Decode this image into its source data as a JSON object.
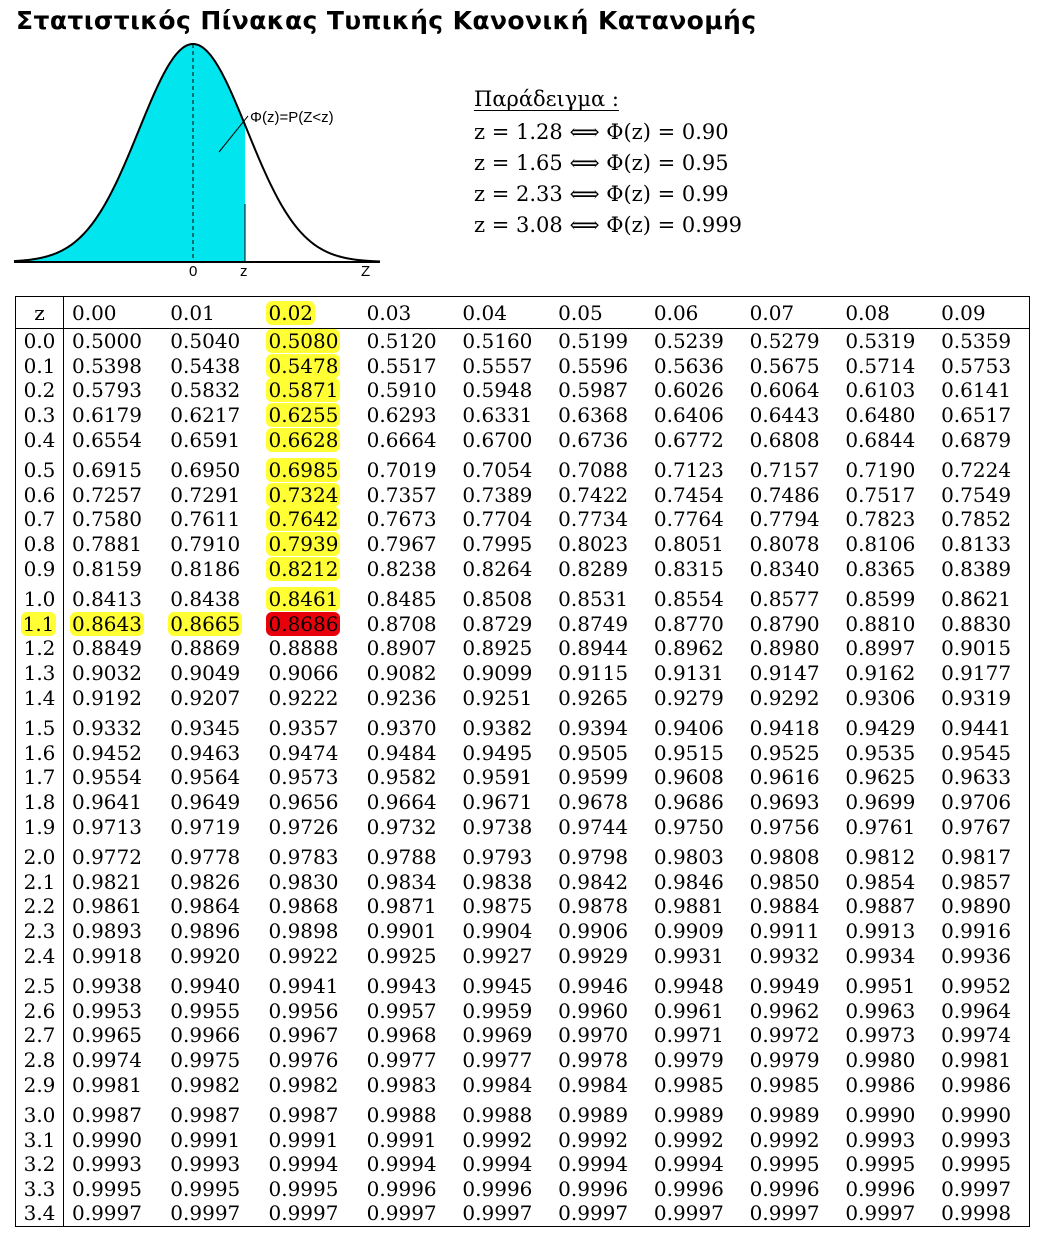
{
  "title": "Στατιστικός Πίνακας Τυπικής Κανονική Κατανομής",
  "figure": {
    "formula_label": "Φ(z)=P(Z<z)",
    "zero_label": "0",
    "z_label": "z",
    "axis_label": "Z",
    "fill_color": "#00e5ee"
  },
  "example": {
    "title": "Παράδειγμα :",
    "lines": [
      "z = 1.28 ⟺ Φ(z) = 0.90",
      "z = 1.65 ⟺ Φ(z) = 0.95",
      "z = 2.33 ⟺ Φ(z) = 0.99",
      "z = 3.08 ⟺ Φ(z) = 0.999"
    ]
  },
  "table": {
    "corner": "z",
    "columns": [
      "0.00",
      "0.01",
      "0.02",
      "0.03",
      "0.04",
      "0.05",
      "0.06",
      "0.07",
      "0.08",
      "0.09"
    ],
    "highlight_color": "#ffff33",
    "result_color": "#e8000b",
    "highlights": {
      "header_col": 2,
      "lookup_row": 11,
      "col_upto_row": 10,
      "row_upto_col": 1
    },
    "rows": [
      {
        "z": "0.0",
        "v": [
          "0.5000",
          "0.5040",
          "0.5080",
          "0.5120",
          "0.5160",
          "0.5199",
          "0.5239",
          "0.5279",
          "0.5319",
          "0.5359"
        ]
      },
      {
        "z": "0.1",
        "v": [
          "0.5398",
          "0.5438",
          "0.5478",
          "0.5517",
          "0.5557",
          "0.5596",
          "0.5636",
          "0.5675",
          "0.5714",
          "0.5753"
        ]
      },
      {
        "z": "0.2",
        "v": [
          "0.5793",
          "0.5832",
          "0.5871",
          "0.5910",
          "0.5948",
          "0.5987",
          "0.6026",
          "0.6064",
          "0.6103",
          "0.6141"
        ]
      },
      {
        "z": "0.3",
        "v": [
          "0.6179",
          "0.6217",
          "0.6255",
          "0.6293",
          "0.6331",
          "0.6368",
          "0.6406",
          "0.6443",
          "0.6480",
          "0.6517"
        ]
      },
      {
        "z": "0.4",
        "v": [
          "0.6554",
          "0.6591",
          "0.6628",
          "0.6664",
          "0.6700",
          "0.6736",
          "0.6772",
          "0.6808",
          "0.6844",
          "0.6879"
        ]
      },
      {
        "z": "0.5",
        "v": [
          "0.6915",
          "0.6950",
          "0.6985",
          "0.7019",
          "0.7054",
          "0.7088",
          "0.7123",
          "0.7157",
          "0.7190",
          "0.7224"
        ]
      },
      {
        "z": "0.6",
        "v": [
          "0.7257",
          "0.7291",
          "0.7324",
          "0.7357",
          "0.7389",
          "0.7422",
          "0.7454",
          "0.7486",
          "0.7517",
          "0.7549"
        ]
      },
      {
        "z": "0.7",
        "v": [
          "0.7580",
          "0.7611",
          "0.7642",
          "0.7673",
          "0.7704",
          "0.7734",
          "0.7764",
          "0.7794",
          "0.7823",
          "0.7852"
        ]
      },
      {
        "z": "0.8",
        "v": [
          "0.7881",
          "0.7910",
          "0.7939",
          "0.7967",
          "0.7995",
          "0.8023",
          "0.8051",
          "0.8078",
          "0.8106",
          "0.8133"
        ]
      },
      {
        "z": "0.9",
        "v": [
          "0.8159",
          "0.8186",
          "0.8212",
          "0.8238",
          "0.8264",
          "0.8289",
          "0.8315",
          "0.8340",
          "0.8365",
          "0.8389"
        ]
      },
      {
        "z": "1.0",
        "v": [
          "0.8413",
          "0.8438",
          "0.8461",
          "0.8485",
          "0.8508",
          "0.8531",
          "0.8554",
          "0.8577",
          "0.8599",
          "0.8621"
        ]
      },
      {
        "z": "1.1",
        "v": [
          "0.8643",
          "0.8665",
          "0.8686",
          "0.8708",
          "0.8729",
          "0.8749",
          "0.8770",
          "0.8790",
          "0.8810",
          "0.8830"
        ]
      },
      {
        "z": "1.2",
        "v": [
          "0.8849",
          "0.8869",
          "0.8888",
          "0.8907",
          "0.8925",
          "0.8944",
          "0.8962",
          "0.8980",
          "0.8997",
          "0.9015"
        ]
      },
      {
        "z": "1.3",
        "v": [
          "0.9032",
          "0.9049",
          "0.9066",
          "0.9082",
          "0.9099",
          "0.9115",
          "0.9131",
          "0.9147",
          "0.9162",
          "0.9177"
        ]
      },
      {
        "z": "1.4",
        "v": [
          "0.9192",
          "0.9207",
          "0.9222",
          "0.9236",
          "0.9251",
          "0.9265",
          "0.9279",
          "0.9292",
          "0.9306",
          "0.9319"
        ]
      },
      {
        "z": "1.5",
        "v": [
          "0.9332",
          "0.9345",
          "0.9357",
          "0.9370",
          "0.9382",
          "0.9394",
          "0.9406",
          "0.9418",
          "0.9429",
          "0.9441"
        ]
      },
      {
        "z": "1.6",
        "v": [
          "0.9452",
          "0.9463",
          "0.9474",
          "0.9484",
          "0.9495",
          "0.9505",
          "0.9515",
          "0.9525",
          "0.9535",
          "0.9545"
        ]
      },
      {
        "z": "1.7",
        "v": [
          "0.9554",
          "0.9564",
          "0.9573",
          "0.9582",
          "0.9591",
          "0.9599",
          "0.9608",
          "0.9616",
          "0.9625",
          "0.9633"
        ]
      },
      {
        "z": "1.8",
        "v": [
          "0.9641",
          "0.9649",
          "0.9656",
          "0.9664",
          "0.9671",
          "0.9678",
          "0.9686",
          "0.9693",
          "0.9699",
          "0.9706"
        ]
      },
      {
        "z": "1.9",
        "v": [
          "0.9713",
          "0.9719",
          "0.9726",
          "0.9732",
          "0.9738",
          "0.9744",
          "0.9750",
          "0.9756",
          "0.9761",
          "0.9767"
        ]
      },
      {
        "z": "2.0",
        "v": [
          "0.9772",
          "0.9778",
          "0.9783",
          "0.9788",
          "0.9793",
          "0.9798",
          "0.9803",
          "0.9808",
          "0.9812",
          "0.9817"
        ]
      },
      {
        "z": "2.1",
        "v": [
          "0.9821",
          "0.9826",
          "0.9830",
          "0.9834",
          "0.9838",
          "0.9842",
          "0.9846",
          "0.9850",
          "0.9854",
          "0.9857"
        ]
      },
      {
        "z": "2.2",
        "v": [
          "0.9861",
          "0.9864",
          "0.9868",
          "0.9871",
          "0.9875",
          "0.9878",
          "0.9881",
          "0.9884",
          "0.9887",
          "0.9890"
        ]
      },
      {
        "z": "2.3",
        "v": [
          "0.9893",
          "0.9896",
          "0.9898",
          "0.9901",
          "0.9904",
          "0.9906",
          "0.9909",
          "0.9911",
          "0.9913",
          "0.9916"
        ]
      },
      {
        "z": "2.4",
        "v": [
          "0.9918",
          "0.9920",
          "0.9922",
          "0.9925",
          "0.9927",
          "0.9929",
          "0.9931",
          "0.9932",
          "0.9934",
          "0.9936"
        ]
      },
      {
        "z": "2.5",
        "v": [
          "0.9938",
          "0.9940",
          "0.9941",
          "0.9943",
          "0.9945",
          "0.9946",
          "0.9948",
          "0.9949",
          "0.9951",
          "0.9952"
        ]
      },
      {
        "z": "2.6",
        "v": [
          "0.9953",
          "0.9955",
          "0.9956",
          "0.9957",
          "0.9959",
          "0.9960",
          "0.9961",
          "0.9962",
          "0.9963",
          "0.9964"
        ]
      },
      {
        "z": "2.7",
        "v": [
          "0.9965",
          "0.9966",
          "0.9967",
          "0.9968",
          "0.9969",
          "0.9970",
          "0.9971",
          "0.9972",
          "0.9973",
          "0.9974"
        ]
      },
      {
        "z": "2.8",
        "v": [
          "0.9974",
          "0.9975",
          "0.9976",
          "0.9977",
          "0.9977",
          "0.9978",
          "0.9979",
          "0.9979",
          "0.9980",
          "0.9981"
        ]
      },
      {
        "z": "2.9",
        "v": [
          "0.9981",
          "0.9982",
          "0.9982",
          "0.9983",
          "0.9984",
          "0.9984",
          "0.9985",
          "0.9985",
          "0.9986",
          "0.9986"
        ]
      },
      {
        "z": "3.0",
        "v": [
          "0.9987",
          "0.9987",
          "0.9987",
          "0.9988",
          "0.9988",
          "0.9989",
          "0.9989",
          "0.9989",
          "0.9990",
          "0.9990"
        ]
      },
      {
        "z": "3.1",
        "v": [
          "0.9990",
          "0.9991",
          "0.9991",
          "0.9991",
          "0.9992",
          "0.9992",
          "0.9992",
          "0.9992",
          "0.9993",
          "0.9993"
        ]
      },
      {
        "z": "3.2",
        "v": [
          "0.9993",
          "0.9993",
          "0.9994",
          "0.9994",
          "0.9994",
          "0.9994",
          "0.9994",
          "0.9995",
          "0.9995",
          "0.9995"
        ]
      },
      {
        "z": "3.3",
        "v": [
          "0.9995",
          "0.9995",
          "0.9995",
          "0.9996",
          "0.9996",
          "0.9996",
          "0.9996",
          "0.9996",
          "0.9996",
          "0.9997"
        ]
      },
      {
        "z": "3.4",
        "v": [
          "0.9997",
          "0.9997",
          "0.9997",
          "0.9997",
          "0.9997",
          "0.9997",
          "0.9997",
          "0.9997",
          "0.9997",
          "0.9998"
        ]
      }
    ]
  }
}
